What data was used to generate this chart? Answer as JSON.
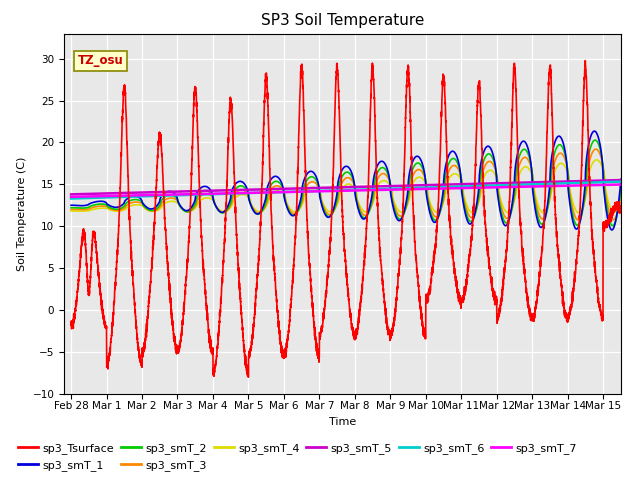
{
  "title": "SP3 Soil Temperature",
  "ylabel": "Soil Temperature (C)",
  "xlabel": "Time",
  "xlim_days": [
    -0.2,
    15.5
  ],
  "ylim": [
    -10,
    33
  ],
  "yticks": [
    -10,
    -5,
    0,
    5,
    10,
    15,
    20,
    25,
    30
  ],
  "xtick_labels": [
    "Feb 28",
    "Mar 1",
    "Mar 2",
    "Mar 3",
    "Mar 4",
    "Mar 5",
    "Mar 6",
    "Mar 7",
    "Mar 8",
    "Mar 9",
    "Mar 10",
    "Mar 11",
    "Mar 12",
    "Mar 13",
    "Mar 14",
    "Mar 15"
  ],
  "xtick_positions": [
    0,
    1,
    2,
    3,
    4,
    5,
    6,
    7,
    8,
    9,
    10,
    11,
    12,
    13,
    14,
    15
  ],
  "series_colors": {
    "sp3_Tsurface": "#ff0000",
    "sp3_smT_1": "#0000dd",
    "sp3_smT_2": "#00cc00",
    "sp3_smT_3": "#ff8800",
    "sp3_smT_4": "#dddd00",
    "sp3_smT_5": "#cc00cc",
    "sp3_smT_6": "#00cccc",
    "sp3_smT_7": "#ff00ff"
  },
  "annotation_text": "TZ_osu",
  "bg_color": "#e8e8e8",
  "title_fontsize": 11,
  "axis_fontsize": 8,
  "tick_fontsize": 7.5,
  "legend_fontsize": 8
}
